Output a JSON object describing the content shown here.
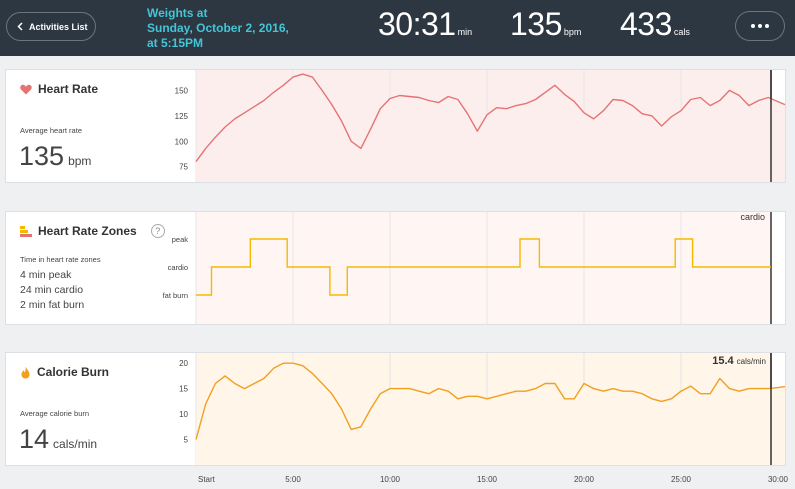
{
  "header": {
    "back_label": "Activities List",
    "title_line1": "Weights at",
    "title_line2": "Sunday, October 2, 2016,",
    "title_line3": "at 5:15PM",
    "duration": {
      "value": "30:31",
      "unit": "min"
    },
    "heart_rate": {
      "value": "135",
      "unit": "bpm"
    },
    "calories": {
      "value": "433",
      "unit": "cals"
    }
  },
  "heart_rate_card": {
    "title": "Heart Rate",
    "avg_label": "Average heart rate",
    "avg_value": "135",
    "avg_unit": "bpm"
  },
  "zones_card": {
    "title": "Heart Rate Zones",
    "help": "?",
    "summary_label": "Time in heart rate zones",
    "lines": [
      "4 min peak",
      "24 min cardio",
      "2 min fat burn"
    ],
    "current_zone": "cardio"
  },
  "calorie_card": {
    "title": "Calorie Burn",
    "avg_label": "Average calorie burn",
    "avg_value": "14",
    "avg_unit": "cals/min",
    "current_value": "15.4",
    "current_unit": "cals/min"
  },
  "colors": {
    "heart": "#e57373",
    "zones": "#f5b800",
    "calorie": "#f0a020",
    "accent": "#42c5d6"
  },
  "x_tick_labels": [
    "Start",
    "5:00",
    "10:00",
    "15:00",
    "20:00",
    "25:00",
    "30:00"
  ],
  "chart_data": [
    {
      "type": "area",
      "name": "heart_rate",
      "ylim": [
        60,
        170
      ],
      "y_ticks": [
        75,
        100,
        125,
        150
      ],
      "x_minutes": [
        0,
        0.5,
        1,
        1.5,
        2,
        2.5,
        3,
        3.5,
        4,
        4.5,
        5,
        5.5,
        6,
        6.5,
        7,
        7.5,
        8,
        8.5,
        9,
        9.5,
        10,
        10.5,
        11,
        11.5,
        12,
        12.5,
        13,
        13.5,
        14,
        14.5,
        15,
        15.5,
        16,
        16.5,
        17,
        17.5,
        18,
        18.5,
        19,
        19.5,
        20,
        20.5,
        21,
        21.5,
        22,
        22.5,
        23,
        23.5,
        24,
        24.5,
        25,
        25.5,
        26,
        26.5,
        27,
        27.5,
        28,
        28.5,
        29,
        29.5,
        30,
        30.5
      ],
      "values": [
        80,
        93,
        104,
        114,
        122,
        128,
        134,
        140,
        148,
        155,
        163,
        166,
        163,
        150,
        136,
        120,
        100,
        93,
        112,
        132,
        142,
        145,
        144,
        143,
        140,
        138,
        144,
        141,
        127,
        110,
        126,
        133,
        132,
        135,
        137,
        141,
        148,
        155,
        146,
        139,
        128,
        122,
        130,
        141,
        140,
        135,
        127,
        125,
        115,
        124,
        130,
        141,
        143,
        135,
        140,
        150,
        145,
        135,
        140,
        143,
        139,
        136
      ]
    },
    {
      "type": "line",
      "name": "heart_rate_zones",
      "y_ticks": [
        "peak",
        "cardio",
        "fat burn"
      ],
      "segments": [
        {
          "start": 0,
          "end": 0.8,
          "zone": "fat burn"
        },
        {
          "start": 0.8,
          "end": 2.8,
          "zone": "cardio"
        },
        {
          "start": 2.8,
          "end": 4.7,
          "zone": "peak"
        },
        {
          "start": 4.7,
          "end": 6.9,
          "zone": "cardio"
        },
        {
          "start": 6.9,
          "end": 7.8,
          "zone": "fat burn"
        },
        {
          "start": 7.8,
          "end": 16.7,
          "zone": "cardio"
        },
        {
          "start": 16.7,
          "end": 17.7,
          "zone": "peak"
        },
        {
          "start": 17.7,
          "end": 24.7,
          "zone": "cardio"
        },
        {
          "start": 24.7,
          "end": 25.6,
          "zone": "peak"
        },
        {
          "start": 25.6,
          "end": 30.5,
          "zone": "cardio"
        }
      ]
    },
    {
      "type": "area",
      "name": "calorie_burn",
      "ylim": [
        0,
        22
      ],
      "y_ticks": [
        5,
        10,
        15,
        20
      ],
      "x_minutes": [
        0,
        0.5,
        1,
        1.5,
        2,
        2.5,
        3,
        3.5,
        4,
        4.5,
        5,
        5.5,
        6,
        6.5,
        7,
        7.5,
        8,
        8.5,
        9,
        9.5,
        10,
        10.5,
        11,
        11.5,
        12,
        12.5,
        13,
        13.5,
        14,
        14.5,
        15,
        15.5,
        16,
        16.5,
        17,
        17.5,
        18,
        18.5,
        19,
        19.5,
        20,
        20.5,
        21,
        21.5,
        22,
        22.5,
        23,
        23.5,
        24,
        24.5,
        25,
        25.5,
        26,
        26.5,
        27,
        27.5,
        28,
        28.5,
        29,
        29.5,
        30,
        30.5
      ],
      "values": [
        5,
        12,
        16,
        17.5,
        16,
        15,
        16,
        17,
        19,
        20,
        20,
        19.5,
        18,
        16,
        14,
        11,
        7,
        7.5,
        11,
        14,
        15,
        15,
        15,
        14.5,
        14,
        15,
        14.5,
        13,
        13.5,
        13.5,
        13,
        13.5,
        14,
        14.5,
        14.5,
        15,
        16,
        16,
        13,
        13,
        16,
        15,
        14.5,
        15,
        14.5,
        14.5,
        14,
        13,
        12.5,
        13,
        14.5,
        15.5,
        14,
        14,
        17,
        15,
        14.5,
        15,
        15,
        15,
        15.2,
        15.4
      ]
    }
  ]
}
